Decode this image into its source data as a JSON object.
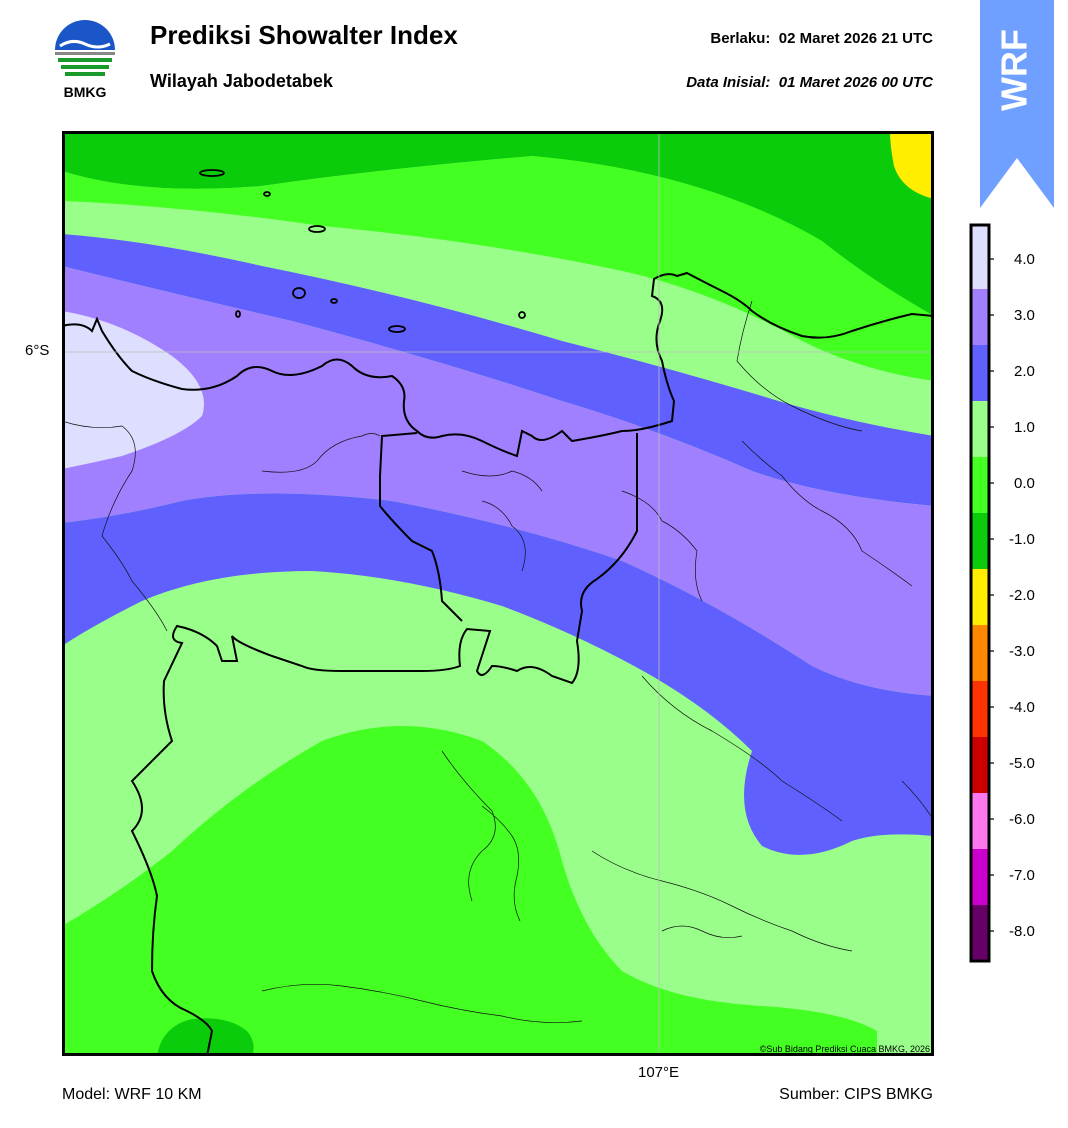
{
  "header": {
    "title": "Prediksi Showalter Index",
    "region": "Wilayah Jabodetabek",
    "valid_label": "Berlaku:",
    "valid_value": "02 Maret 2026 21 UTC",
    "init_label": "Data Inisial:",
    "init_value": "01 Maret 2026 00 UTC"
  },
  "logo": {
    "text": "BMKG",
    "icon": "bmkg-logo-icon"
  },
  "badge": {
    "text": "WRF",
    "color": "#6fa0ff"
  },
  "map": {
    "lat_label": "6°S",
    "lon_label": "107°E",
    "credit": "©Sub Bidang Prediksi Cuaca BMKG, 2026"
  },
  "footer": {
    "model": "Model: WRF 10 KM",
    "source": "Sumber: CIPS BMKG"
  },
  "legend": {
    "ticks": [
      "4.0",
      "3.0",
      "2.0",
      "1.0",
      "0.0",
      "-1.0",
      "-2.0",
      "-3.0",
      "-4.0",
      "-5.0",
      "-6.0",
      "-7.0",
      "-8.0"
    ],
    "colors": [
      "#dedeff",
      "#a080ff",
      "#6060ff",
      "#9aff8a",
      "#44ff22",
      "#0acc0a",
      "#ffee00",
      "#ff8800",
      "#ff3300",
      "#cc0000",
      "#ff77ee",
      "#cc00cc",
      "#660066"
    ]
  }
}
